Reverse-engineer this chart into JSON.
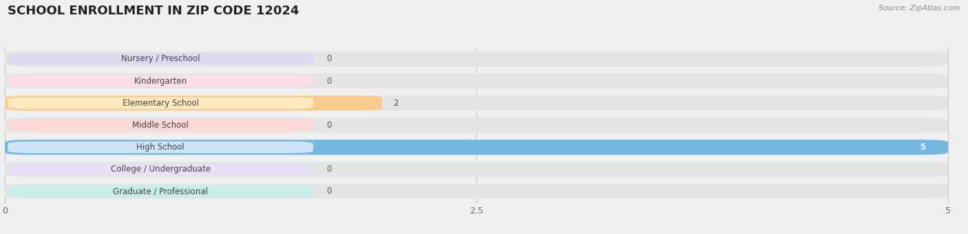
{
  "title": "SCHOOL ENROLLMENT IN ZIP CODE 12024",
  "source": "Source: ZipAtlas.com",
  "categories": [
    "Nursery / Preschool",
    "Kindergarten",
    "Elementary School",
    "Middle School",
    "High School",
    "College / Undergraduate",
    "Graduate / Professional"
  ],
  "values": [
    0,
    0,
    2,
    0,
    5,
    0,
    0
  ],
  "bar_colors": [
    "#b3aee0",
    "#f7b8c8",
    "#f9cc8e",
    "#f7aaaa",
    "#74b8e0",
    "#ccc0e8",
    "#88d4c4"
  ],
  "label_bg_colors": [
    "#dddaf0",
    "#fcdde8",
    "#fde8c0",
    "#fdd8d8",
    "#cce4f5",
    "#e8e0f5",
    "#c8ede8"
  ],
  "background_color": "#f0f0f0",
  "bar_background_color": "#e4e4e4",
  "xlim_max": 5.0,
  "xticks": [
    0,
    2.5,
    5
  ],
  "title_fontsize": 13,
  "label_fontsize": 8.5,
  "value_fontsize": 8.5,
  "source_fontsize": 8
}
